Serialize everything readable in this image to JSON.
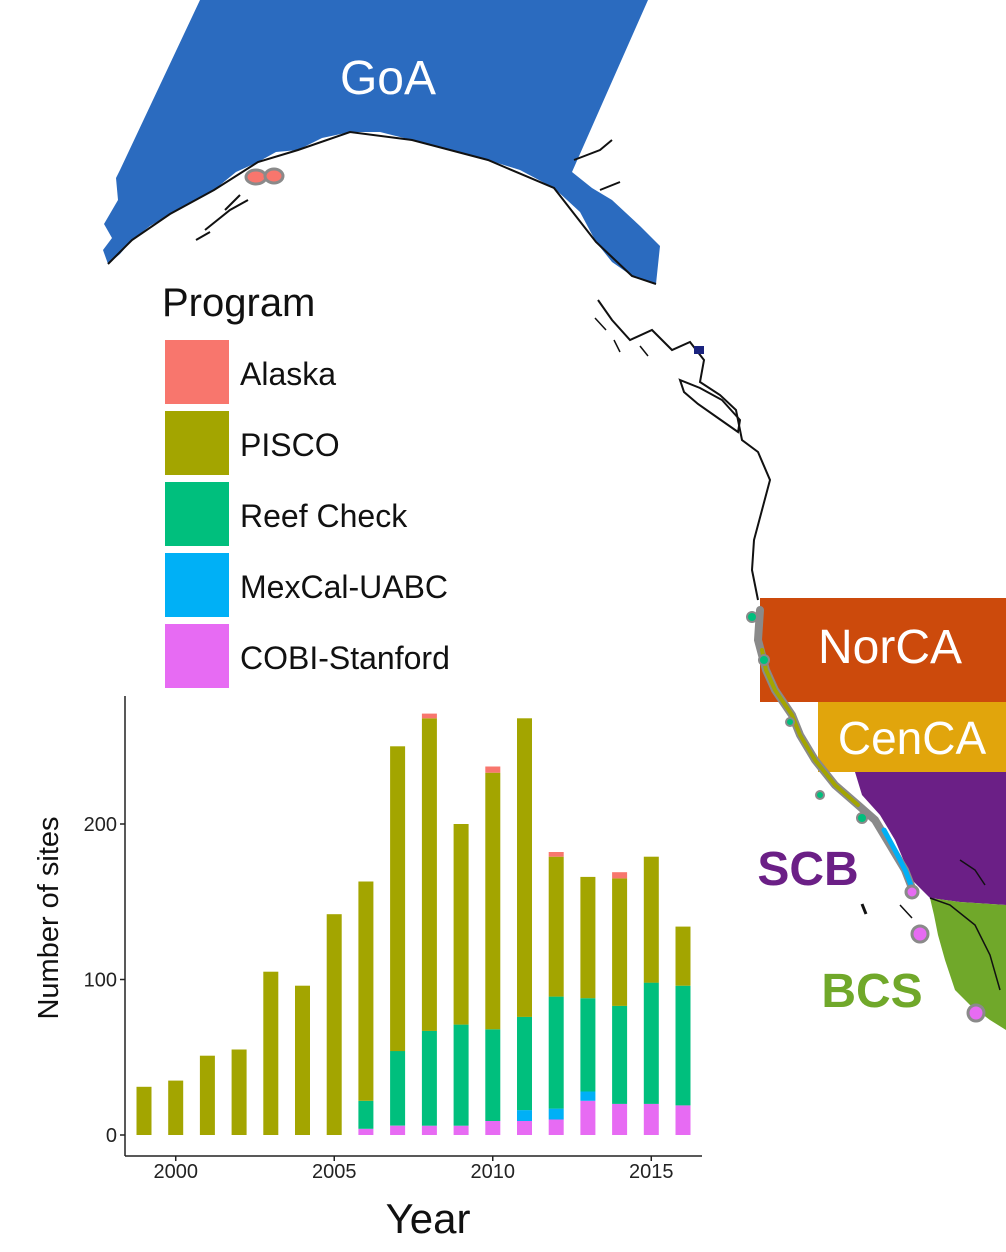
{
  "map": {
    "regions": [
      {
        "key": "goa",
        "label": "GoA",
        "color": "#2b6bbf"
      },
      {
        "key": "norca",
        "label": "NorCA",
        "color": "#cc4a0c"
      },
      {
        "key": "cenca",
        "label": "CenCA",
        "color": "#e1a50c"
      },
      {
        "key": "scb",
        "label": "SCB",
        "color": "#6b1f86"
      },
      {
        "key": "bcs",
        "label": "BCS",
        "color": "#70a82a"
      }
    ]
  },
  "legend": {
    "title": "Program",
    "items": [
      {
        "label": "Alaska",
        "color": "#f8766d"
      },
      {
        "label": "PISCO",
        "color": "#a3a500"
      },
      {
        "label": "Reef Check",
        "color": "#00bf7d"
      },
      {
        "label": "MexCal-UABC",
        "color": "#00b0f6"
      },
      {
        "label": "COBI-Stanford",
        "color": "#e76bf3"
      }
    ]
  },
  "chart_data": {
    "type": "bar",
    "stacked": true,
    "xlabel": "Year",
    "ylabel": "Number of sites",
    "ylim": [
      0,
      280
    ],
    "xlim": [
      1998.4,
      2016.6
    ],
    "yticks": [
      0,
      100,
      200
    ],
    "xticks": [
      2000,
      2005,
      2010,
      2015
    ],
    "grid": false,
    "x": [
      1999,
      2000,
      2001,
      2002,
      2003,
      2004,
      2005,
      2006,
      2007,
      2008,
      2009,
      2010,
      2011,
      2012,
      2013,
      2014,
      2015,
      2016
    ],
    "series": [
      {
        "name": "COBI-Stanford",
        "color": "#e76bf3",
        "values": [
          0,
          0,
          0,
          0,
          0,
          0,
          0,
          4,
          6,
          6,
          6,
          9,
          9,
          10,
          22,
          20,
          20,
          19
        ]
      },
      {
        "name": "MexCal-UABC",
        "color": "#00b0f6",
        "values": [
          0,
          0,
          0,
          0,
          0,
          0,
          0,
          0,
          0,
          0,
          0,
          0,
          7,
          7,
          6,
          0,
          0,
          0
        ]
      },
      {
        "name": "Reef Check",
        "color": "#00bf7d",
        "values": [
          0,
          0,
          0,
          0,
          0,
          0,
          0,
          18,
          48,
          61,
          65,
          59,
          60,
          72,
          60,
          63,
          78,
          77
        ]
      },
      {
        "name": "PISCO",
        "color": "#a3a500",
        "values": [
          31,
          35,
          51,
          55,
          105,
          96,
          142,
          141,
          196,
          201,
          129,
          165,
          192,
          90,
          78,
          82,
          81,
          38
        ]
      },
      {
        "name": "Alaska",
        "color": "#f8766d",
        "values": [
          0,
          0,
          0,
          0,
          0,
          0,
          0,
          0,
          0,
          3,
          0,
          4,
          0,
          3,
          0,
          4,
          0,
          0
        ]
      }
    ]
  }
}
